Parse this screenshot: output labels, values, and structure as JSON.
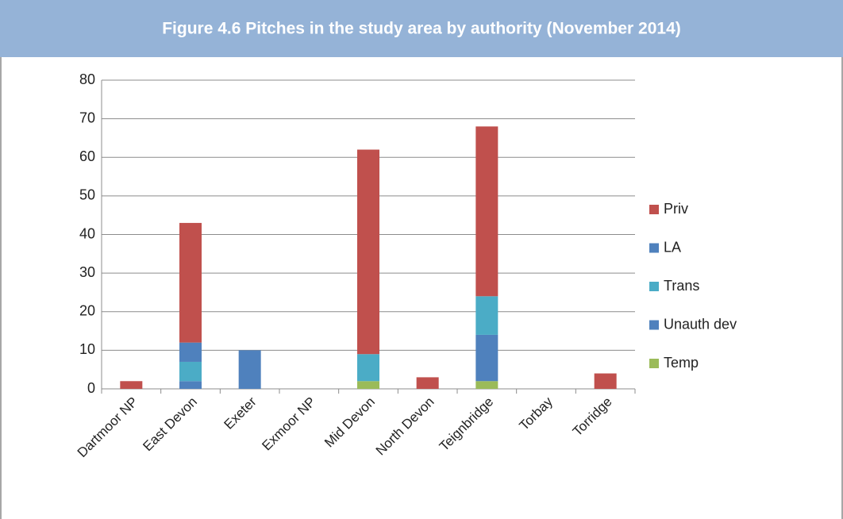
{
  "chart_data": {
    "type": "stacked_bar",
    "title": "Figure 4.6 Pitches in the study area by authority (November 2014)",
    "categories": [
      "Dartmoor NP",
      "East Devon",
      "Exeter",
      "Exmoor NP",
      "Mid Devon",
      "North Devon",
      "Teignbridge",
      "Torbay",
      "Torridge"
    ],
    "series": [
      {
        "name": "Temp",
        "color": "#9bbb59",
        "values": [
          0,
          0,
          0,
          0,
          2,
          0,
          2,
          0,
          0
        ]
      },
      {
        "name": "Unauth dev",
        "color": "#4f81bd",
        "values": [
          0,
          2,
          0,
          0,
          0,
          0,
          12,
          0,
          0
        ]
      },
      {
        "name": "Trans",
        "color": "#4bacc6",
        "values": [
          0,
          5,
          0,
          0,
          7,
          0,
          10,
          0,
          0
        ]
      },
      {
        "name": "LA",
        "color": "#4f81bd",
        "values": [
          0,
          5,
          10,
          0,
          0,
          0,
          0,
          0,
          0
        ]
      },
      {
        "name": "Priv",
        "color": "#c0504d",
        "values": [
          2,
          31,
          0,
          0,
          53,
          3,
          44,
          0,
          4
        ]
      }
    ],
    "ylim": [
      0,
      80
    ],
    "yticks": [
      0,
      10,
      20,
      30,
      40,
      50,
      60,
      70,
      80
    ],
    "grid": true,
    "legend": "right"
  }
}
